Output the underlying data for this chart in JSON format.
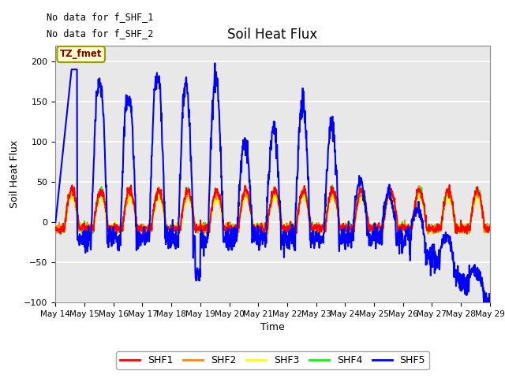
{
  "title": "Soil Heat Flux",
  "ylabel": "Soil Heat Flux",
  "xlabel": "Time",
  "ylim": [
    -100,
    220
  ],
  "yticks": [
    -100,
    -50,
    0,
    50,
    100,
    150,
    200
  ],
  "annotation_text1": "No data for f_SHF_1",
  "annotation_text2": "No data for f_SHF_2",
  "legend_labels": [
    "SHF1",
    "SHF2",
    "SHF3",
    "SHF4",
    "SHF5"
  ],
  "legend_colors": [
    "#ff0000",
    "#ff8800",
    "#ffff00",
    "#00ff00",
    "#0000ff"
  ],
  "tz_label": "TZ_fmet",
  "tz_bg": "#ffffcc",
  "tz_border": "#999900",
  "plot_bg": "#e8e8e8",
  "fig_bg": "#ffffff",
  "grid_color": "#ffffff",
  "x_start": 14.0,
  "x_end": 29.0,
  "xtick_labels": [
    "May 14",
    "May 15",
    "May 16",
    "May 17",
    "May 18",
    "May 19",
    "May 20",
    "May 21",
    "May 22",
    "May 23",
    "May 24",
    "May 25",
    "May 26",
    "May 27",
    "May 28",
    "May 29"
  ],
  "xtick_positions": [
    14,
    15,
    16,
    17,
    18,
    19,
    20,
    21,
    22,
    23,
    24,
    25,
    26,
    27,
    28,
    29
  ]
}
